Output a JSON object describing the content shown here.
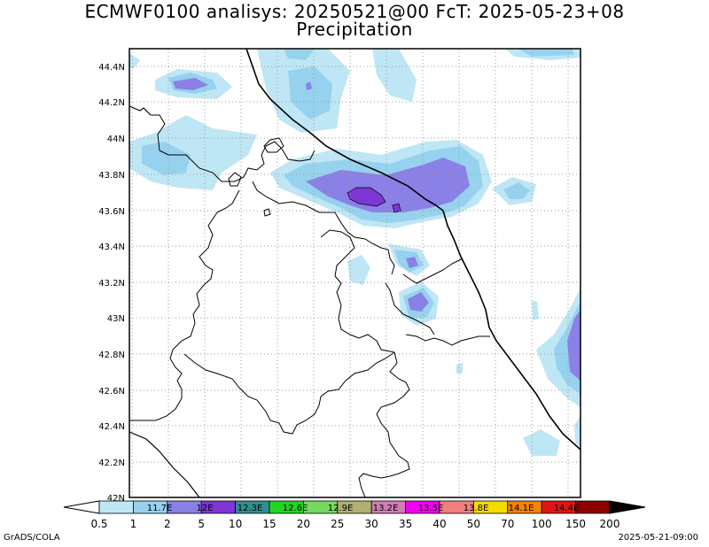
{
  "title_line1": "ECMWF0100 analisys: 20250521@00 FcT: 2025-05-23+08",
  "title_line2": "Precipitation",
  "footer_left": "GrADS/COLA",
  "footer_right": "2025-05-21-09:00",
  "lat_labels": [
    "44.4N",
    "44.2N",
    "44N",
    "43.8N",
    "43.6N",
    "43.4N",
    "43.2N",
    "43N",
    "42.8N",
    "42.6N",
    "42.4N",
    "42.2N",
    "42N"
  ],
  "lon_labels": [
    "11.7E",
    "12E",
    "12.3E",
    "12.6E",
    "12.9E",
    "13.2E",
    "13.5E",
    "13.8E",
    "14.1E",
    "14.4E"
  ],
  "colorbar": {
    "levels": [
      "0.5",
      "1",
      "2",
      "5",
      "10",
      "15",
      "20",
      "25",
      "30",
      "35",
      "40",
      "50",
      "70",
      "100",
      "150",
      "200"
    ],
    "colors": [
      "#bfe6f5",
      "#96d2ee",
      "#8a80e6",
      "#7e36d6",
      "#2f8f8f",
      "#22d422",
      "#77d860",
      "#b2b070",
      "#d07cb5",
      "#f200f2",
      "#f08080",
      "#f5dc00",
      "#f58200",
      "#e01414",
      "#8c0000"
    ]
  }
}
